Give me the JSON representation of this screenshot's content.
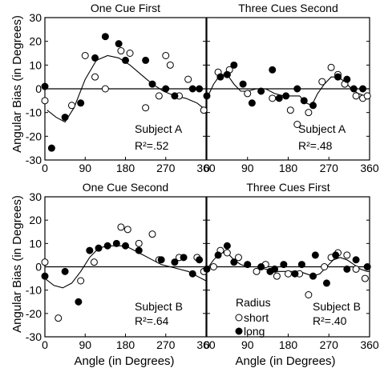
{
  "figure": {
    "ylabel": "Angular Bias (in Degrees)",
    "xlabel": "Angle (in Degrees)"
  },
  "legend": {
    "title": "Radius",
    "items": [
      {
        "label": "short",
        "marker": "open-circle"
      },
      {
        "label": "long",
        "marker": "filled-circle"
      }
    ]
  },
  "chart_data": [
    {
      "type": "scatter",
      "title": "One Cue First",
      "subject": "Subject A",
      "r2": "R²=.52",
      "xlim": [
        0,
        360
      ],
      "ylim": [
        -30,
        30
      ],
      "xticks": [
        0,
        90,
        180,
        270,
        360
      ],
      "yticks": [
        -30,
        -20,
        -10,
        0,
        10,
        20,
        30
      ],
      "series": [
        {
          "name": "short",
          "marker": "open",
          "points": [
            [
              0,
              -5
            ],
            [
              60,
              -7
            ],
            [
              90,
              14
            ],
            [
              112,
              5
            ],
            [
              135,
              0
            ],
            [
              170,
              16
            ],
            [
              190,
              15
            ],
            [
              225,
              -8
            ],
            [
              255,
              -3
            ],
            [
              270,
              14
            ],
            [
              280,
              10
            ],
            [
              300,
              -3
            ],
            [
              320,
              4
            ],
            [
              355,
              -9
            ]
          ]
        },
        {
          "name": "long",
          "marker": "filled",
          "points": [
            [
              0,
              1
            ],
            [
              15,
              -25
            ],
            [
              45,
              -12
            ],
            [
              80,
              -6
            ],
            [
              112,
              13
            ],
            [
              135,
              22
            ],
            [
              165,
              19
            ],
            [
              180,
              12
            ],
            [
              225,
              12
            ],
            [
              240,
              2
            ],
            [
              270,
              0
            ],
            [
              290,
              -3
            ],
            [
              330,
              0
            ],
            [
              345,
              0
            ]
          ]
        }
      ],
      "fit": [
        [
          5,
          -9
        ],
        [
          25,
          -12
        ],
        [
          45,
          -14
        ],
        [
          65,
          -8
        ],
        [
          90,
          4
        ],
        [
          115,
          12
        ],
        [
          140,
          14
        ],
        [
          165,
          13
        ],
        [
          190,
          10
        ],
        [
          215,
          6
        ],
        [
          240,
          2
        ],
        [
          265,
          -1
        ],
        [
          290,
          -3
        ],
        [
          315,
          -4
        ],
        [
          340,
          -6
        ],
        [
          360,
          -9
        ]
      ]
    },
    {
      "type": "scatter",
      "title": "Three Cues Second",
      "subject": "Subject A",
      "r2": "R²=.48",
      "xlim": [
        0,
        360
      ],
      "ylim": [
        -30,
        30
      ],
      "xticks": [
        0,
        90,
        180,
        270,
        360
      ],
      "yticks": [
        -30,
        -20,
        -10,
        0,
        10,
        20,
        30
      ],
      "series": [
        {
          "name": "short",
          "marker": "open",
          "points": [
            [
              25,
              7
            ],
            [
              50,
              8
            ],
            [
              90,
              -2
            ],
            [
              145,
              -4
            ],
            [
              185,
              -9
            ],
            [
              200,
              -15
            ],
            [
              225,
              -10
            ],
            [
              255,
              3
            ],
            [
              275,
              9
            ],
            [
              290,
              6
            ],
            [
              305,
              2
            ],
            [
              330,
              -3
            ],
            [
              345,
              -4
            ],
            [
              355,
              -3
            ]
          ]
        },
        {
          "name": "long",
          "marker": "filled",
          "points": [
            [
              0,
              -3
            ],
            [
              30,
              5
            ],
            [
              45,
              6
            ],
            [
              60,
              10
            ],
            [
              80,
              2
            ],
            [
              100,
              -6
            ],
            [
              120,
              -1
            ],
            [
              145,
              8
            ],
            [
              160,
              -4
            ],
            [
              175,
              -3
            ],
            [
              200,
              0
            ],
            [
              215,
              -5
            ],
            [
              235,
              -7
            ],
            [
              290,
              5
            ],
            [
              310,
              4
            ],
            [
              325,
              0
            ],
            [
              345,
              0
            ]
          ]
        }
      ],
      "fit": [
        [
          0,
          -4
        ],
        [
          15,
          2
        ],
        [
          30,
          6
        ],
        [
          45,
          6
        ],
        [
          60,
          2
        ],
        [
          75,
          -1
        ],
        [
          90,
          -1
        ],
        [
          110,
          0
        ],
        [
          130,
          0
        ],
        [
          150,
          -2
        ],
        [
          170,
          -3
        ],
        [
          190,
          -3
        ],
        [
          205,
          -3
        ],
        [
          220,
          -6
        ],
        [
          232,
          -7
        ],
        [
          245,
          -2
        ],
        [
          260,
          2
        ],
        [
          275,
          5
        ],
        [
          290,
          5
        ],
        [
          305,
          3
        ],
        [
          320,
          0
        ],
        [
          335,
          -2
        ],
        [
          350,
          -3
        ],
        [
          360,
          -4
        ]
      ]
    },
    {
      "type": "scatter",
      "title": "One Cue Second",
      "subject": "Subject B",
      "r2": "R²=.64",
      "xlim": [
        0,
        360
      ],
      "ylim": [
        -30,
        30
      ],
      "xticks": [
        0,
        90,
        180,
        270,
        360
      ],
      "yticks": [
        -30,
        -20,
        -10,
        0,
        10,
        20,
        30
      ],
      "series": [
        {
          "name": "short",
          "marker": "open",
          "points": [
            [
              0,
              2
            ],
            [
              30,
              -22
            ],
            [
              80,
              -6
            ],
            [
              110,
              2
            ],
            [
              170,
              17
            ],
            [
              185,
              16
            ],
            [
              210,
              10
            ],
            [
              240,
              14
            ],
            [
              255,
              3
            ],
            [
              300,
              4
            ],
            [
              340,
              4
            ],
            [
              355,
              -2
            ]
          ]
        },
        {
          "name": "long",
          "marker": "filled",
          "points": [
            [
              0,
              -4
            ],
            [
              45,
              -2
            ],
            [
              75,
              -15
            ],
            [
              100,
              7
            ],
            [
              120,
              8
            ],
            [
              140,
              9
            ],
            [
              160,
              10
            ],
            [
              180,
              9
            ],
            [
              210,
              7
            ],
            [
              260,
              3
            ],
            [
              290,
              2
            ],
            [
              310,
              4
            ],
            [
              330,
              -3
            ],
            [
              345,
              3
            ]
          ]
        }
      ],
      "fit": [
        [
          0,
          -5
        ],
        [
          20,
          -8
        ],
        [
          40,
          -9
        ],
        [
          60,
          -7
        ],
        [
          80,
          -2
        ],
        [
          100,
          4
        ],
        [
          120,
          8
        ],
        [
          140,
          9
        ],
        [
          160,
          9
        ],
        [
          180,
          9
        ],
        [
          200,
          7
        ],
        [
          220,
          5
        ],
        [
          240,
          3
        ],
        [
          260,
          1
        ],
        [
          280,
          0
        ],
        [
          300,
          -1
        ],
        [
          320,
          -2
        ],
        [
          340,
          -4
        ],
        [
          360,
          -6
        ]
      ]
    },
    {
      "type": "scatter",
      "title": "Three Cues First",
      "subject": "Subject B",
      "r2": "R²=.40",
      "xlim": [
        0,
        360
      ],
      "ylim": [
        -30,
        30
      ],
      "xticks": [
        0,
        90,
        180,
        270,
        360
      ],
      "yticks": [
        -30,
        -20,
        -10,
        0,
        10,
        20,
        30
      ],
      "series": [
        {
          "name": "short",
          "marker": "open",
          "points": [
            [
              15,
              0
            ],
            [
              30,
              7
            ],
            [
              45,
              6
            ],
            [
              70,
              4
            ],
            [
              110,
              -2
            ],
            [
              130,
              1
            ],
            [
              155,
              -4
            ],
            [
              180,
              -3
            ],
            [
              205,
              -3
            ],
            [
              225,
              -12
            ],
            [
              260,
              0
            ],
            [
              275,
              4
            ],
            [
              290,
              6
            ],
            [
              310,
              5
            ],
            [
              330,
              -1
            ],
            [
              350,
              -5
            ]
          ]
        },
        {
          "name": "long",
          "marker": "filled",
          "points": [
            [
              0,
              -1
            ],
            [
              25,
              5
            ],
            [
              45,
              9
            ],
            [
              60,
              2
            ],
            [
              90,
              1
            ],
            [
              120,
              0
            ],
            [
              140,
              -2
            ],
            [
              150,
              -1
            ],
            [
              170,
              1
            ],
            [
              195,
              -3
            ],
            [
              210,
              1
            ],
            [
              235,
              -4
            ],
            [
              240,
              5
            ],
            [
              265,
              -7
            ],
            [
              285,
              5
            ],
            [
              310,
              -1
            ],
            [
              330,
              3
            ],
            [
              355,
              0
            ]
          ]
        }
      ],
      "fit": [
        [
          0,
          -1
        ],
        [
          15,
          3
        ],
        [
          30,
          6
        ],
        [
          45,
          6
        ],
        [
          60,
          3
        ],
        [
          75,
          1
        ],
        [
          90,
          0
        ],
        [
          110,
          0
        ],
        [
          130,
          -1
        ],
        [
          150,
          -2
        ],
        [
          170,
          -2
        ],
        [
          190,
          -2
        ],
        [
          205,
          -2
        ],
        [
          220,
          -3
        ],
        [
          235,
          -4
        ],
        [
          250,
          -3
        ],
        [
          265,
          0
        ],
        [
          280,
          3
        ],
        [
          295,
          4
        ],
        [
          310,
          3
        ],
        [
          325,
          1
        ],
        [
          340,
          -1
        ],
        [
          355,
          -2
        ],
        [
          360,
          -2
        ]
      ]
    }
  ]
}
